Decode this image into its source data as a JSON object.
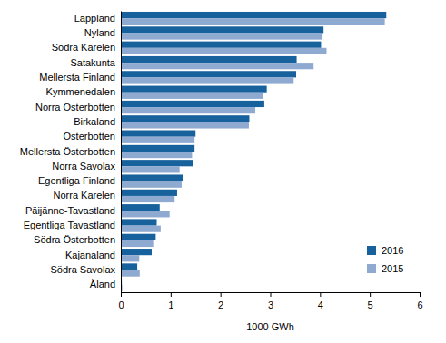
{
  "chart_data": {
    "type": "bar",
    "orientation": "horizontal",
    "categories": [
      "Lappland",
      "Nyland",
      "Södra Karelen",
      "Satakunta",
      "Mellersta Finland",
      "Kymmenedalen",
      "Norra Österbotten",
      "Birkaland",
      "Österbotten",
      "Mellersta Österbotten",
      "Norra Savolax",
      "Egentliga Finland",
      "Norra Karelen",
      "Päijänne-Tavastland",
      "Egentliga Tavastland",
      "Södra Österbotten",
      "Kajanaland",
      "Södra Savolax",
      "Åland"
    ],
    "series": [
      {
        "name": "2016",
        "color": "#17619c",
        "values": [
          5.33,
          4.07,
          4.02,
          3.53,
          3.52,
          2.93,
          2.88,
          2.58,
          1.5,
          1.48,
          1.45,
          1.25,
          1.13,
          0.78,
          0.72,
          0.7,
          0.62,
          0.33,
          0.02
        ]
      },
      {
        "name": "2015",
        "color": "#8eaad0",
        "values": [
          5.3,
          4.05,
          4.13,
          3.87,
          3.47,
          2.85,
          2.7,
          2.57,
          1.48,
          1.43,
          1.18,
          1.22,
          1.08,
          0.98,
          0.8,
          0.65,
          0.37,
          0.38,
          0.03
        ]
      }
    ],
    "xlabel": "1000 GWh",
    "xlim": [
      0,
      6
    ],
    "xticks": [
      0,
      1,
      2,
      3,
      4,
      5,
      6
    ],
    "legend": "lower right",
    "grid": false
  }
}
